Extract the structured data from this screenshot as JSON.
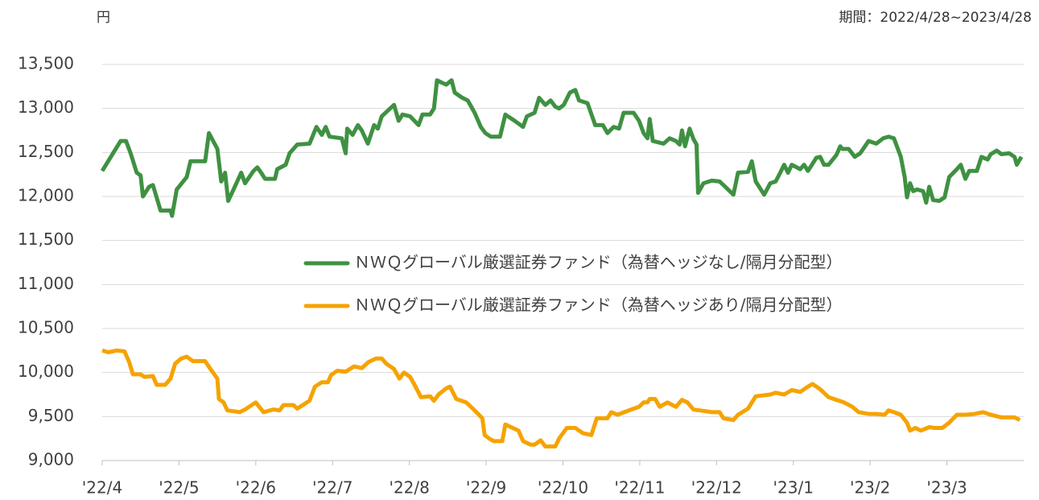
{
  "chart_data": {
    "type": "line",
    "y_unit_label": "円",
    "period_note": "期間：2022/4/28~2023/4/28",
    "xlim": [
      0,
      12
    ],
    "xticks": [
      {
        "value": 0,
        "label": "'22/4"
      },
      {
        "value": 1,
        "label": "'22/5"
      },
      {
        "value": 2,
        "label": "'22/6"
      },
      {
        "value": 3,
        "label": "'22/7"
      },
      {
        "value": 4,
        "label": "'22/8"
      },
      {
        "value": 5,
        "label": "'22/9"
      },
      {
        "value": 6,
        "label": "'22/10"
      },
      {
        "value": 7,
        "label": "'22/11"
      },
      {
        "value": 8,
        "label": "'22/12"
      },
      {
        "value": 9,
        "label": "'23/1"
      },
      {
        "value": 10,
        "label": "'23/2"
      },
      {
        "value": 11,
        "label": "'23/3"
      }
    ],
    "ylim": [
      9000,
      13500
    ],
    "yticks": [
      {
        "value": 9000,
        "label": "9,000"
      },
      {
        "value": 9500,
        "label": "9,500"
      },
      {
        "value": 10000,
        "label": "10,000"
      },
      {
        "value": 10500,
        "label": "10,500"
      },
      {
        "value": 11000,
        "label": "11,000"
      },
      {
        "value": 11500,
        "label": "11,500"
      },
      {
        "value": 12000,
        "label": "12,000"
      },
      {
        "value": 12500,
        "label": "12,500"
      },
      {
        "value": 13000,
        "label": "13,000"
      },
      {
        "value": 13500,
        "label": "13,500"
      }
    ],
    "grid": true,
    "legend": "center",
    "series": [
      {
        "name": "ＮＷＱグローバル厳選証券ファンド（為替ヘッジなし/隔月分配型）",
        "color": "#3f9142",
        "x": [
          0,
          0.14,
          0.24,
          0.31,
          0.37,
          0.45,
          0.5,
          0.53,
          0.61,
          0.66,
          0.76,
          0.89,
          0.91,
          0.97,
          1.1,
          1.15,
          1.34,
          1.39,
          1.5,
          1.55,
          1.6,
          1.64,
          1.71,
          1.81,
          1.86,
          1.97,
          2.02,
          2.07,
          2.12,
          2.25,
          2.28,
          2.39,
          2.44,
          2.54,
          2.7,
          2.79,
          2.86,
          2.91,
          2.96,
          3.12,
          3.17,
          3.19,
          3.26,
          3.33,
          3.38,
          3.46,
          3.54,
          3.59,
          3.64,
          3.75,
          3.8,
          3.86,
          3.91,
          4.01,
          4.12,
          4.17,
          4.27,
          4.32,
          4.36,
          4.43,
          4.48,
          4.55,
          4.59,
          4.69,
          4.76,
          4.85,
          4.93,
          4.99,
          5.06,
          5.18,
          5.25,
          5.37,
          5.48,
          5.53,
          5.63,
          5.69,
          5.77,
          5.84,
          5.9,
          5.95,
          6.01,
          6.09,
          6.16,
          6.21,
          6.32,
          6.42,
          6.52,
          6.58,
          6.66,
          6.73,
          6.79,
          6.92,
          6.99,
          7.05,
          7.1,
          7.13,
          7.17,
          7.31,
          7.39,
          7.47,
          7.52,
          7.55,
          7.59,
          7.65,
          7.7,
          7.74,
          7.76,
          7.83,
          7.94,
          8.04,
          8.09,
          8.22,
          8.28,
          8.41,
          8.46,
          8.51,
          8.62,
          8.7,
          8.77,
          8.83,
          8.88,
          8.93,
          8.98,
          9.09,
          9.14,
          9.19,
          9.3,
          9.35,
          9.4,
          9.46,
          9.56,
          9.61,
          9.64,
          9.72,
          9.8,
          9.87,
          9.98,
          10.08,
          10.17,
          10.24,
          10.31,
          10.4,
          10.45,
          10.48,
          10.52,
          10.56,
          10.61,
          10.69,
          10.73,
          10.77,
          10.82,
          10.9,
          10.97,
          11.03,
          11.13,
          11.18,
          11.24,
          11.29,
          11.39,
          11.45,
          11.53,
          11.57,
          11.65,
          11.71,
          11.81,
          11.88,
          11.91,
          11.97
        ],
        "values": [
          12290,
          12490,
          12630,
          12630,
          12490,
          12270,
          12240,
          12000,
          12110,
          12130,
          11840,
          11840,
          11780,
          12080,
          12220,
          12400,
          12400,
          12720,
          12540,
          12170,
          12270,
          11950,
          12080,
          12270,
          12150,
          12290,
          12330,
          12270,
          12200,
          12200,
          12310,
          12360,
          12490,
          12590,
          12600,
          12790,
          12700,
          12790,
          12680,
          12660,
          12490,
          12770,
          12700,
          12810,
          12750,
          12600,
          12810,
          12770,
          12910,
          13000,
          13040,
          12860,
          12930,
          12910,
          12810,
          12930,
          12930,
          13000,
          13320,
          13290,
          13270,
          13320,
          13180,
          13120,
          13090,
          12950,
          12790,
          12720,
          12680,
          12680,
          12930,
          12860,
          12790,
          12910,
          12950,
          13120,
          13040,
          13090,
          13020,
          13000,
          13040,
          13180,
          13210,
          13090,
          13060,
          12810,
          12810,
          12720,
          12790,
          12770,
          12950,
          12950,
          12860,
          12720,
          12660,
          12880,
          12630,
          12600,
          12660,
          12630,
          12590,
          12750,
          12570,
          12770,
          12650,
          12590,
          12040,
          12150,
          12180,
          12170,
          12130,
          12020,
          12270,
          12280,
          12400,
          12170,
          12020,
          12150,
          12170,
          12270,
          12360,
          12270,
          12360,
          12310,
          12360,
          12290,
          12440,
          12450,
          12360,
          12360,
          12470,
          12570,
          12540,
          12540,
          12450,
          12490,
          12630,
          12600,
          12660,
          12680,
          12660,
          12450,
          12220,
          11990,
          12150,
          12060,
          12080,
          12060,
          11930,
          12110,
          11960,
          11950,
          11990,
          12220,
          12310,
          12360,
          12200,
          12290,
          12290,
          12450,
          12420,
          12480,
          12520,
          12480,
          12490,
          12450,
          12360,
          12450
        ]
      },
      {
        "name": "ＮＷＱグローバル厳選証券ファンド（為替ヘッジあり/隔月分配型）",
        "color": "#f5a300",
        "x": [
          0,
          0.08,
          0.19,
          0.29,
          0.35,
          0.4,
          0.5,
          0.55,
          0.66,
          0.71,
          0.82,
          0.89,
          0.95,
          1.03,
          1.1,
          1.18,
          1.34,
          1.41,
          1.5,
          1.52,
          1.58,
          1.63,
          1.79,
          1.86,
          2.0,
          2.1,
          2.23,
          2.31,
          2.36,
          2.49,
          2.54,
          2.7,
          2.77,
          2.86,
          2.94,
          2.98,
          3.06,
          3.17,
          3.28,
          3.38,
          3.47,
          3.57,
          3.64,
          3.7,
          3.8,
          3.87,
          3.93,
          4.01,
          4.08,
          4.15,
          4.27,
          4.32,
          4.38,
          4.48,
          4.53,
          4.61,
          4.74,
          4.85,
          4.95,
          4.98,
          5.04,
          5.1,
          5.21,
          5.25,
          5.42,
          5.48,
          5.58,
          5.63,
          5.71,
          5.77,
          5.9,
          5.95,
          6.05,
          6.16,
          6.26,
          6.37,
          6.44,
          6.58,
          6.63,
          6.71,
          6.89,
          6.99,
          7.05,
          7.1,
          7.13,
          7.2,
          7.26,
          7.36,
          7.47,
          7.55,
          7.62,
          7.7,
          7.78,
          7.94,
          8.04,
          8.09,
          8.22,
          8.28,
          8.41,
          8.51,
          8.7,
          8.77,
          8.88,
          8.98,
          9.09,
          9.19,
          9.25,
          9.35,
          9.46,
          9.56,
          9.66,
          9.77,
          9.85,
          9.98,
          10.08,
          10.19,
          10.24,
          10.31,
          10.4,
          10.48,
          10.52,
          10.59,
          10.66,
          10.77,
          10.84,
          10.94,
          11.03,
          11.13,
          11.24,
          11.36,
          11.47,
          11.57,
          11.71,
          11.84,
          11.88,
          11.95
        ],
        "values": [
          10250,
          10230,
          10250,
          10240,
          10120,
          9980,
          9980,
          9950,
          9960,
          9860,
          9860,
          9930,
          10100,
          10160,
          10180,
          10130,
          10130,
          10040,
          9930,
          9700,
          9660,
          9570,
          9550,
          9580,
          9660,
          9550,
          9580,
          9570,
          9630,
          9630,
          9590,
          9680,
          9840,
          9890,
          9890,
          9970,
          10020,
          10010,
          10070,
          10050,
          10120,
          10160,
          10160,
          10100,
          10040,
          9930,
          10000,
          9950,
          9840,
          9720,
          9730,
          9680,
          9750,
          9820,
          9840,
          9700,
          9660,
          9570,
          9480,
          9290,
          9250,
          9220,
          9220,
          9410,
          9340,
          9220,
          9180,
          9180,
          9230,
          9160,
          9160,
          9250,
          9370,
          9370,
          9310,
          9290,
          9480,
          9480,
          9550,
          9520,
          9580,
          9610,
          9660,
          9660,
          9700,
          9700,
          9610,
          9660,
          9610,
          9690,
          9660,
          9580,
          9570,
          9550,
          9550,
          9480,
          9460,
          9520,
          9590,
          9730,
          9750,
          9770,
          9750,
          9800,
          9780,
          9840,
          9870,
          9810,
          9720,
          9690,
          9660,
          9610,
          9550,
          9530,
          9530,
          9520,
          9570,
          9550,
          9520,
          9430,
          9340,
          9370,
          9340,
          9380,
          9370,
          9370,
          9430,
          9520,
          9520,
          9530,
          9550,
          9520,
          9490,
          9490,
          9490,
          9460
        ]
      }
    ]
  }
}
